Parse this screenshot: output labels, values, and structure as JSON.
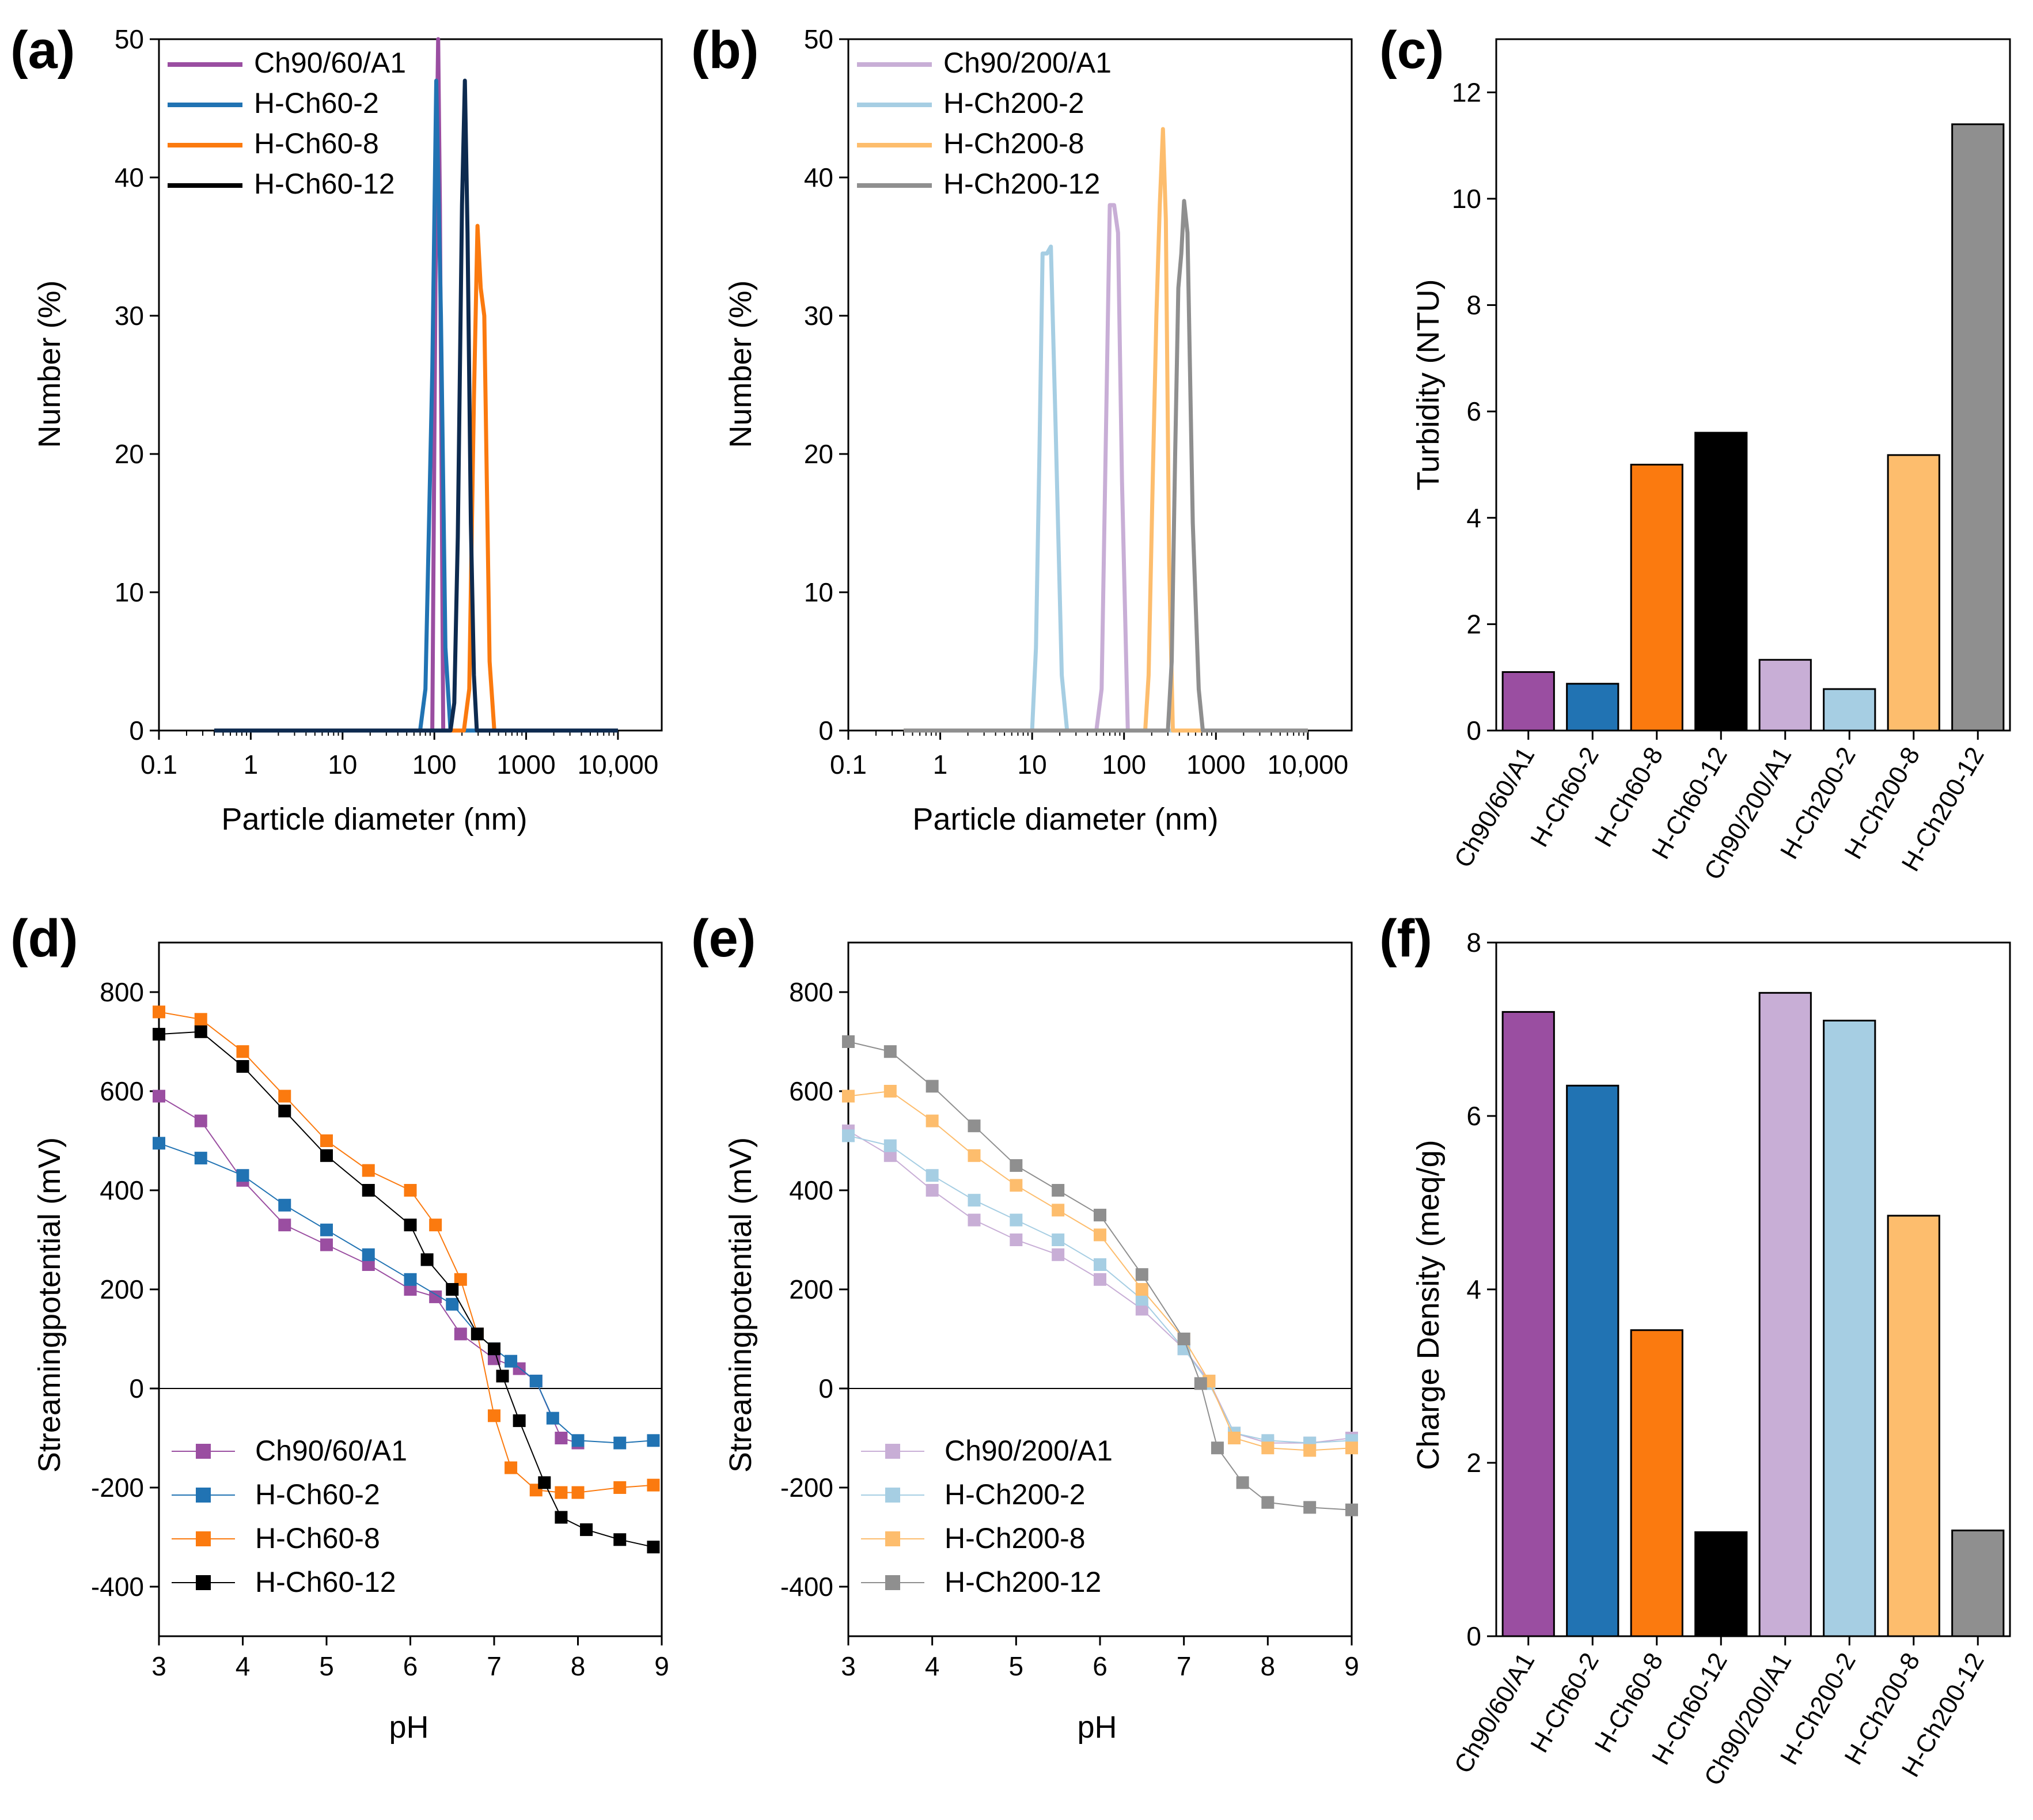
{
  "colors": {
    "Ch90/60/A1": "#9a4ea1",
    "H-Ch60-2": "#2173b3",
    "H-Ch60-8": "#fb7a0f",
    "H-Ch60-12": "#000000",
    "H-Ch60-12_line": "#0d2a4f",
    "Ch90/200/A1": "#c8aed6",
    "H-Ch200-2": "#a6cee3",
    "H-Ch200-8": "#fdbd6d",
    "H-Ch200-12": "#8f8f8f"
  },
  "chart_data": [
    {
      "panel": "(a)",
      "type": "line",
      "xscale": "log",
      "xlabel": "Particle diameter (nm)",
      "ylabel": "Number (%)",
      "xlim": [
        0.1,
        30000
      ],
      "ylim": [
        0,
        50
      ],
      "xticks": [
        0.1,
        1,
        10,
        100,
        1000,
        10000
      ],
      "xtick_labels": [
        "0.1",
        "1",
        "10",
        "100",
        "1000",
        "10,000"
      ],
      "yticks": [
        0,
        10,
        20,
        30,
        40,
        50
      ],
      "ytick_labels": [
        "0",
        "10",
        "20",
        "30",
        "40",
        "50"
      ],
      "legend": [
        "Ch90/60/A1",
        "H-Ch60-2",
        "H-Ch60-8",
        "H-Ch60-12"
      ],
      "series": [
        {
          "name": "Ch90/60/A1",
          "x": [
            0.4,
            95,
            105,
            110,
            115,
            125,
            10000
          ],
          "y": [
            0,
            0,
            40,
            50,
            38,
            0,
            0
          ]
        },
        {
          "name": "H-Ch60-2",
          "x": [
            0.4,
            70,
            80,
            95,
            105,
            118,
            132,
            150,
            10000
          ],
          "y": [
            0,
            0,
            3,
            26,
            47,
            30,
            6,
            0,
            0
          ]
        },
        {
          "name": "H-Ch60-8",
          "x": [
            0.4,
            210,
            240,
            270,
            295,
            320,
            350,
            400,
            450,
            10000
          ],
          "y": [
            0,
            0,
            3,
            24,
            36.5,
            32,
            30,
            5,
            0,
            0
          ]
        },
        {
          "name": "H-Ch60-12",
          "x": [
            0.4,
            150,
            165,
            180,
            200,
            215,
            230,
            250,
            270,
            290,
            10000
          ],
          "y": [
            0,
            0,
            2,
            14,
            38,
            47,
            36,
            15,
            4,
            0,
            0
          ]
        }
      ]
    },
    {
      "panel": "(b)",
      "type": "line",
      "xscale": "log",
      "xlabel": "Particle diameter (nm)",
      "ylabel": "Number (%)",
      "xlim": [
        0.1,
        30000
      ],
      "ylim": [
        0,
        50
      ],
      "xticks": [
        0.1,
        1,
        10,
        100,
        1000,
        10000
      ],
      "xtick_labels": [
        "0.1",
        "1",
        "10",
        "100",
        "1000",
        "10,000"
      ],
      "yticks": [
        0,
        10,
        20,
        30,
        40,
        50
      ],
      "ytick_labels": [
        "0",
        "10",
        "20",
        "30",
        "40",
        "50"
      ],
      "legend": [
        "Ch90/200/A1",
        "H-Ch200-2",
        "H-Ch200-8",
        "H-Ch200-12"
      ],
      "series": [
        {
          "name": "Ch90/200/A1",
          "x": [
            0.4,
            50,
            57,
            63,
            70,
            78,
            86,
            95,
            110,
            10000
          ],
          "y": [
            0,
            0,
            3,
            20,
            38,
            38,
            36,
            18,
            0,
            0
          ]
        },
        {
          "name": "H-Ch200-2",
          "x": [
            0.4,
            10,
            11,
            12,
            13,
            14.5,
            16,
            18,
            21,
            24,
            10000
          ],
          "y": [
            0,
            0,
            6,
            20,
            34.5,
            34.5,
            35,
            22,
            4,
            0,
            0
          ]
        },
        {
          "name": "H-Ch200-8",
          "x": [
            0.4,
            170,
            185,
            205,
            225,
            245,
            265,
            285,
            310,
            340,
            10000
          ],
          "y": [
            0,
            0,
            4,
            18,
            30,
            38,
            43.5,
            37,
            12,
            0,
            0
          ]
        },
        {
          "name": "H-Ch200-12",
          "x": [
            0.4,
            300,
            330,
            360,
            390,
            420,
            450,
            490,
            560,
            650,
            720,
            10000
          ],
          "y": [
            0,
            0,
            5,
            20,
            32,
            34.5,
            38.3,
            36,
            15,
            3,
            0,
            0
          ]
        }
      ]
    },
    {
      "panel": "(c)",
      "type": "bar",
      "ylabel": "Turbidity (NTU)",
      "ylim": [
        0,
        13
      ],
      "yticks": [
        0,
        2,
        4,
        6,
        8,
        10,
        12
      ],
      "ytick_labels": [
        "0",
        "2",
        "4",
        "6",
        "8",
        "10",
        "12"
      ],
      "categories": [
        "Ch90/60/A1",
        "H-Ch60-2",
        "H-Ch60-8",
        "H-Ch60-12",
        "Ch90/200/A1",
        "H-Ch200-2",
        "H-Ch200-8",
        "H-Ch200-12"
      ],
      "values": [
        1.1,
        0.88,
        5.0,
        5.6,
        1.33,
        0.78,
        5.18,
        11.4
      ]
    },
    {
      "panel": "(d)",
      "type": "scatter",
      "xlabel": "pH",
      "ylabel": "Streamingpotential (mV)",
      "xlim": [
        3,
        9
      ],
      "ylim": [
        -500,
        900
      ],
      "xticks": [
        3,
        4,
        5,
        6,
        7,
        8,
        9
      ],
      "xtick_labels": [
        "3",
        "4",
        "5",
        "6",
        "7",
        "8",
        "9"
      ],
      "yticks": [
        -400,
        -200,
        0,
        200,
        400,
        600,
        800
      ],
      "ytick_labels": [
        "-400",
        "-200",
        "0",
        "200",
        "400",
        "600",
        "800"
      ],
      "legend": [
        "Ch90/60/A1",
        "H-Ch60-2",
        "H-Ch60-8",
        "H-Ch60-12"
      ],
      "series": [
        {
          "name": "Ch90/60/A1",
          "x": [
            3.0,
            3.5,
            4.0,
            4.5,
            5.0,
            5.5,
            6.0,
            6.3,
            6.6,
            7.0,
            7.3,
            7.5,
            7.8,
            8.0
          ],
          "y": [
            590,
            540,
            420,
            330,
            290,
            250,
            200,
            185,
            110,
            60,
            40,
            15,
            -100,
            -110
          ]
        },
        {
          "name": "H-Ch60-2",
          "x": [
            3.0,
            3.5,
            4.0,
            4.5,
            5.0,
            5.5,
            6.0,
            6.5,
            6.8,
            7.0,
            7.2,
            7.5,
            7.7,
            8.0,
            8.5,
            8.9
          ],
          "y": [
            495,
            465,
            430,
            370,
            320,
            270,
            220,
            170,
            110,
            80,
            55,
            15,
            -60,
            -105,
            -110,
            -105
          ]
        },
        {
          "name": "H-Ch60-8",
          "x": [
            3.0,
            3.5,
            4.0,
            4.5,
            5.0,
            5.5,
            6.0,
            6.3,
            6.6,
            6.8,
            7.0,
            7.2,
            7.5,
            7.8,
            8.0,
            8.5,
            8.9
          ],
          "y": [
            760,
            745,
            680,
            590,
            500,
            440,
            400,
            330,
            220,
            110,
            -55,
            -160,
            -205,
            -210,
            -210,
            -200,
            -195
          ]
        },
        {
          "name": "H-Ch60-12",
          "x": [
            3.0,
            3.5,
            4.0,
            4.5,
            5.0,
            5.5,
            6.0,
            6.2,
            6.5,
            6.8,
            7.0,
            7.1,
            7.3,
            7.6,
            7.8,
            8.1,
            8.5,
            8.9
          ],
          "y": [
            715,
            720,
            650,
            560,
            470,
            400,
            330,
            260,
            200,
            110,
            80,
            25,
            -65,
            -190,
            -260,
            -285,
            -305,
            -320
          ]
        }
      ]
    },
    {
      "panel": "(e)",
      "type": "scatter",
      "xlabel": "pH",
      "ylabel": "Streamingpotential (mV)",
      "xlim": [
        3,
        9
      ],
      "ylim": [
        -500,
        900
      ],
      "xticks": [
        3,
        4,
        5,
        6,
        7,
        8,
        9
      ],
      "xtick_labels": [
        "3",
        "4",
        "5",
        "6",
        "7",
        "8",
        "9"
      ],
      "yticks": [
        -400,
        -200,
        0,
        200,
        400,
        600,
        800
      ],
      "ytick_labels": [
        "-400",
        "-200",
        "0",
        "200",
        "400",
        "600",
        "800"
      ],
      "legend": [
        "Ch90/200/A1",
        "H-Ch200-2",
        "H-Ch200-8",
        "H-Ch200-12"
      ],
      "series": [
        {
          "name": "Ch90/200/A1",
          "x": [
            3.0,
            3.5,
            4.0,
            4.5,
            5.0,
            5.5,
            6.0,
            6.5,
            7.0,
            7.3,
            7.6,
            8.0,
            8.5,
            9.0
          ],
          "y": [
            520,
            470,
            400,
            340,
            300,
            270,
            220,
            160,
            80,
            15,
            -90,
            -110,
            -110,
            -100
          ]
        },
        {
          "name": "H-Ch200-2",
          "x": [
            3.0,
            3.5,
            4.0,
            4.5,
            5.0,
            5.5,
            6.0,
            6.5,
            7.0,
            7.3,
            7.6,
            8.0,
            8.5,
            9.0
          ],
          "y": [
            510,
            490,
            430,
            380,
            340,
            300,
            250,
            180,
            80,
            10,
            -90,
            -105,
            -110,
            -105
          ]
        },
        {
          "name": "H-Ch200-8",
          "x": [
            3.0,
            3.5,
            4.0,
            4.5,
            5.0,
            5.5,
            6.0,
            6.5,
            7.0,
            7.3,
            7.6,
            8.0,
            8.5,
            9.0
          ],
          "y": [
            590,
            600,
            540,
            470,
            410,
            360,
            310,
            200,
            100,
            15,
            -100,
            -120,
            -125,
            -120
          ]
        },
        {
          "name": "H-Ch200-12",
          "x": [
            3.0,
            3.5,
            4.0,
            4.5,
            5.0,
            5.5,
            6.0,
            6.5,
            7.0,
            7.2,
            7.4,
            7.7,
            8.0,
            8.5,
            9.0
          ],
          "y": [
            700,
            680,
            610,
            530,
            450,
            400,
            350,
            230,
            100,
            10,
            -120,
            -190,
            -230,
            -240,
            -245
          ]
        }
      ]
    },
    {
      "panel": "(f)",
      "type": "bar",
      "ylabel": "Charge Density (meq/g)",
      "ylim": [
        0,
        8
      ],
      "yticks": [
        0,
        2,
        4,
        6,
        8
      ],
      "ytick_labels": [
        "0",
        "2",
        "4",
        "6",
        "8"
      ],
      "categories": [
        "Ch90/60/A1",
        "H-Ch60-2",
        "H-Ch60-8",
        "H-Ch60-12",
        "Ch90/200/A1",
        "H-Ch200-2",
        "H-Ch200-8",
        "H-Ch200-12"
      ],
      "values": [
        7.2,
        6.35,
        3.53,
        1.2,
        7.42,
        7.1,
        4.85,
        1.22
      ]
    }
  ]
}
